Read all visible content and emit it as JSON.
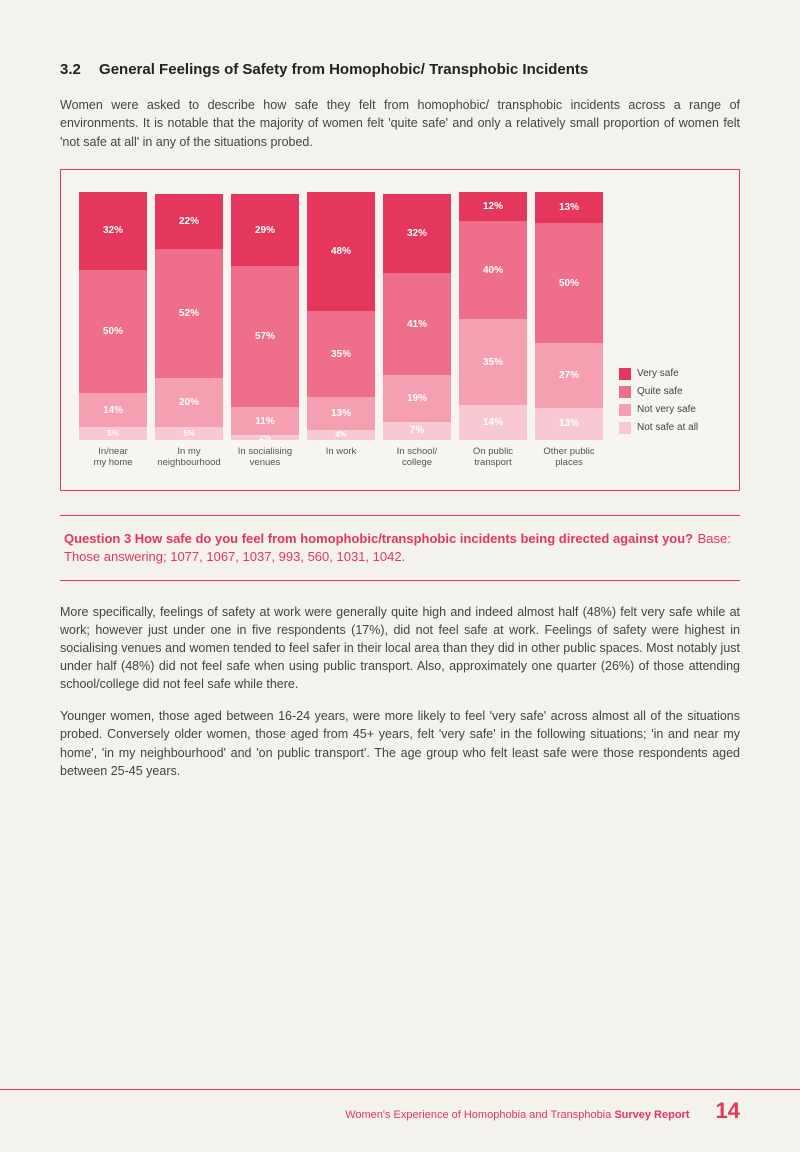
{
  "section": {
    "number": "3.2",
    "title": "General Feelings of Safety from Homophobic/ Transphobic Incidents"
  },
  "intro": "Women were asked to describe how safe they felt from homophobic/ transphobic incidents across a range of environments.  It is notable that the majority of women felt 'quite safe' and only a relatively small proportion of women felt 'not safe at all' in any of the situations probed.",
  "chart": {
    "type": "stacked-bar",
    "colors": {
      "very_safe": "#e5365c",
      "quite_safe": "#ef6e8b",
      "not_very_safe": "#f4a0b1",
      "not_safe_at_all": "#f8c9d3"
    },
    "legend": [
      {
        "key": "very_safe",
        "label": "Very safe"
      },
      {
        "key": "quite_safe",
        "label": "Quite safe"
      },
      {
        "key": "not_very_safe",
        "label": "Not very safe"
      },
      {
        "key": "not_safe_at_all",
        "label": "Not safe at all"
      }
    ],
    "categories": [
      {
        "label_line1": "In/near",
        "label_line2": "my home",
        "segments": {
          "very_safe": 32,
          "quite_safe": 50,
          "not_very_safe": 14,
          "not_safe_at_all": 5
        }
      },
      {
        "label_line1": "In my",
        "label_line2": "neighbourhood",
        "segments": {
          "very_safe": 22,
          "quite_safe": 52,
          "not_very_safe": 20,
          "not_safe_at_all": 5
        }
      },
      {
        "label_line1": "In socialising",
        "label_line2": "venues",
        "segments": {
          "very_safe": 29,
          "quite_safe": 57,
          "not_very_safe": 11,
          "not_safe_at_all": 2
        }
      },
      {
        "label_line1": "In work",
        "label_line2": "",
        "segments": {
          "very_safe": 48,
          "quite_safe": 35,
          "not_very_safe": 13,
          "not_safe_at_all": 4
        }
      },
      {
        "label_line1": "In school/",
        "label_line2": "college",
        "segments": {
          "very_safe": 32,
          "quite_safe": 41,
          "not_very_safe": 19,
          "not_safe_at_all": 7
        }
      },
      {
        "label_line1": "On public",
        "label_line2": "transport",
        "segments": {
          "very_safe": 12,
          "quite_safe": 40,
          "not_very_safe": 35,
          "not_safe_at_all": 14
        }
      },
      {
        "label_line1": "Other public",
        "label_line2": "places",
        "segments": {
          "very_safe": 13,
          "quite_safe": 50,
          "not_very_safe": 27,
          "not_safe_at_all": 13
        }
      }
    ]
  },
  "question": {
    "title": "Question 3 How safe do you feel from homophobic/transphobic incidents being directed against you?",
    "base": " Base: Those answering; 1077, 1067, 1037, 993, 560, 1031, 1042."
  },
  "para1": "More specifically, feelings of safety at work were generally quite high and indeed almost half (48%) felt very safe while at work; however just under one in five respondents (17%), did not feel safe at work. Feelings of safety were highest in socialising venues and women tended to feel safer in their local area than they did in other public spaces. Most notably just under half (48%) did not feel safe when using public transport. Also, approximately one quarter (26%) of those attending school/college did not feel safe while there.",
  "para2": "Younger women, those aged between 16-24 years, were more likely to feel 'very safe' across almost all of the situations probed.  Conversely older women, those aged from 45+ years, felt 'very safe' in the following situations; 'in and near my home', 'in my neighbourhood' and 'on public transport'. The age group who felt least safe were those respondents aged between 25-45 years.",
  "footer": {
    "report_prefix": "Women's Experience of Homophobia and Transphobia ",
    "report_bold": "Survey Report",
    "page": "14"
  }
}
